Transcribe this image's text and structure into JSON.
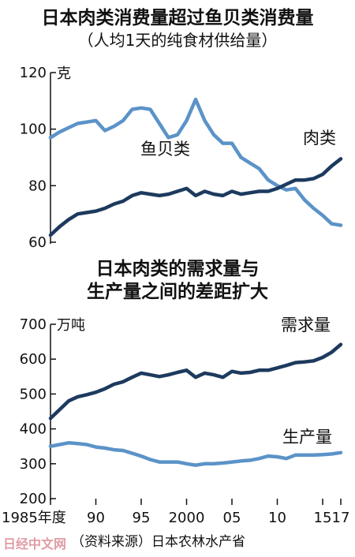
{
  "chart_data": [
    {
      "type": "line",
      "title": "日本肉类消费量超过鱼贝类消费量",
      "subtitle": "（人均1天的纯食材供给量）",
      "ylabel": "克",
      "ylim": [
        60,
        120
      ],
      "yticks": [
        60,
        80,
        100,
        120
      ],
      "grid": false,
      "x": [
        1985,
        1986,
        1987,
        1988,
        1989,
        1990,
        1991,
        1992,
        1993,
        1994,
        1995,
        1996,
        1997,
        1998,
        1999,
        2000,
        2001,
        2002,
        2003,
        2004,
        2005,
        2006,
        2007,
        2008,
        2009,
        2010,
        2011,
        2012,
        2013,
        2014,
        2015,
        2016,
        2017
      ],
      "series": [
        {
          "name": "鱼贝类",
          "color": "#5b93c8",
          "values": [
            97,
            99,
            100.5,
            102,
            102.5,
            103,
            99.5,
            101,
            103,
            107,
            107.5,
            107,
            102,
            97,
            98,
            103,
            110.5,
            103,
            98,
            95,
            95,
            90,
            88,
            86,
            82,
            80,
            78.5,
            79,
            75,
            72,
            69.5,
            66.5,
            66
          ]
        },
        {
          "name": "肉类",
          "color": "#1d3a5e",
          "values": [
            62.5,
            65.5,
            68,
            70,
            70.5,
            71,
            72,
            73.5,
            74.5,
            76.5,
            77.5,
            77,
            76.5,
            77,
            78,
            79,
            76.5,
            78,
            77,
            76.5,
            78,
            77,
            77.5,
            78,
            78,
            79,
            80.5,
            82,
            82,
            82.5,
            84,
            87,
            89.5
          ]
        }
      ]
    },
    {
      "type": "line",
      "title": [
        "日本肉类的需求量与",
        "生产量之间的差距扩大"
      ],
      "ylabel": "万吨",
      "ylim": [
        200,
        700
      ],
      "yticks": [
        200,
        300,
        400,
        500,
        600,
        700
      ],
      "xticks": [
        {
          "x": 1985,
          "label": "1985年度"
        },
        {
          "x": 1990,
          "label": "90"
        },
        {
          "x": 1995,
          "label": "95"
        },
        {
          "x": 2000,
          "label": "2000"
        },
        {
          "x": 2005,
          "label": "05"
        },
        {
          "x": 2010,
          "label": "10"
        },
        {
          "x": 2015,
          "label": "15"
        },
        {
          "x": 2017,
          "label": "17"
        }
      ],
      "grid": false,
      "x": [
        1985,
        1986,
        1987,
        1988,
        1989,
        1990,
        1991,
        1992,
        1993,
        1994,
        1995,
        1996,
        1997,
        1998,
        1999,
        2000,
        2001,
        2002,
        2003,
        2004,
        2005,
        2006,
        2007,
        2008,
        2009,
        2010,
        2011,
        2012,
        2013,
        2014,
        2015,
        2016,
        2017
      ],
      "series": [
        {
          "name": "需求量",
          "color": "#1d3a5e",
          "values": [
            430,
            455,
            480,
            492,
            498,
            505,
            515,
            528,
            535,
            548,
            560,
            555,
            550,
            555,
            562,
            568,
            548,
            560,
            555,
            548,
            565,
            560,
            562,
            568,
            568,
            575,
            582,
            590,
            592,
            595,
            605,
            620,
            642
          ]
        },
        {
          "name": "生产量",
          "color": "#5b93c8",
          "values": [
            350,
            355,
            360,
            358,
            355,
            348,
            345,
            340,
            338,
            330,
            322,
            312,
            305,
            305,
            305,
            300,
            296,
            300,
            300,
            302,
            305,
            308,
            310,
            315,
            322,
            320,
            315,
            325,
            325,
            325,
            326,
            328,
            332
          ]
        }
      ]
    }
  ],
  "source": "（资料来源）日本农林水产省",
  "watermark": "日经中文网"
}
